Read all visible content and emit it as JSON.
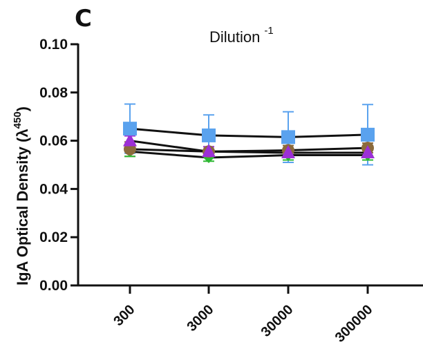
{
  "panel_label": "C",
  "chart_data": {
    "type": "line",
    "title": "Dilution",
    "title_superscript": "-1",
    "ylabel": "IgA Optical Density (",
    "ylabel_symbol": "λ",
    "ylabel_superscript": "450",
    "ylabel_close": ")",
    "categories": [
      "300",
      "3000",
      "30000",
      "300000"
    ],
    "ylim": [
      0,
      0.1
    ],
    "yticks": [
      0.0,
      0.02,
      0.04,
      0.06,
      0.08,
      0.1
    ],
    "ytick_labels": [
      "0.00",
      "0.02",
      "0.04",
      "0.06",
      "0.08",
      "0.10"
    ],
    "grid": false,
    "series": [
      {
        "marker": "square",
        "color": "#5aa2ee",
        "values": [
          0.065,
          0.0622,
          0.0615,
          0.0625
        ],
        "error": [
          0.0102,
          0.0085,
          0.0105,
          0.0125
        ]
      },
      {
        "marker": "circle",
        "color": "#8b6a3c",
        "values": [
          0.0565,
          0.0555,
          0.056,
          0.057
        ],
        "error": [
          0.003,
          0.002,
          0.002,
          0.002
        ]
      },
      {
        "marker": "triangle",
        "color": "#9c2fd6",
        "values": [
          0.06,
          0.0555,
          0.055,
          0.055
        ],
        "error": [
          0.002,
          0.002,
          0.002,
          0.002
        ]
      },
      {
        "marker": "diamond",
        "color": "#2db832",
        "values": [
          0.0555,
          0.053,
          0.054,
          0.054
        ],
        "error": [
          0.002,
          0.0015,
          0.002,
          0.002
        ]
      }
    ]
  }
}
